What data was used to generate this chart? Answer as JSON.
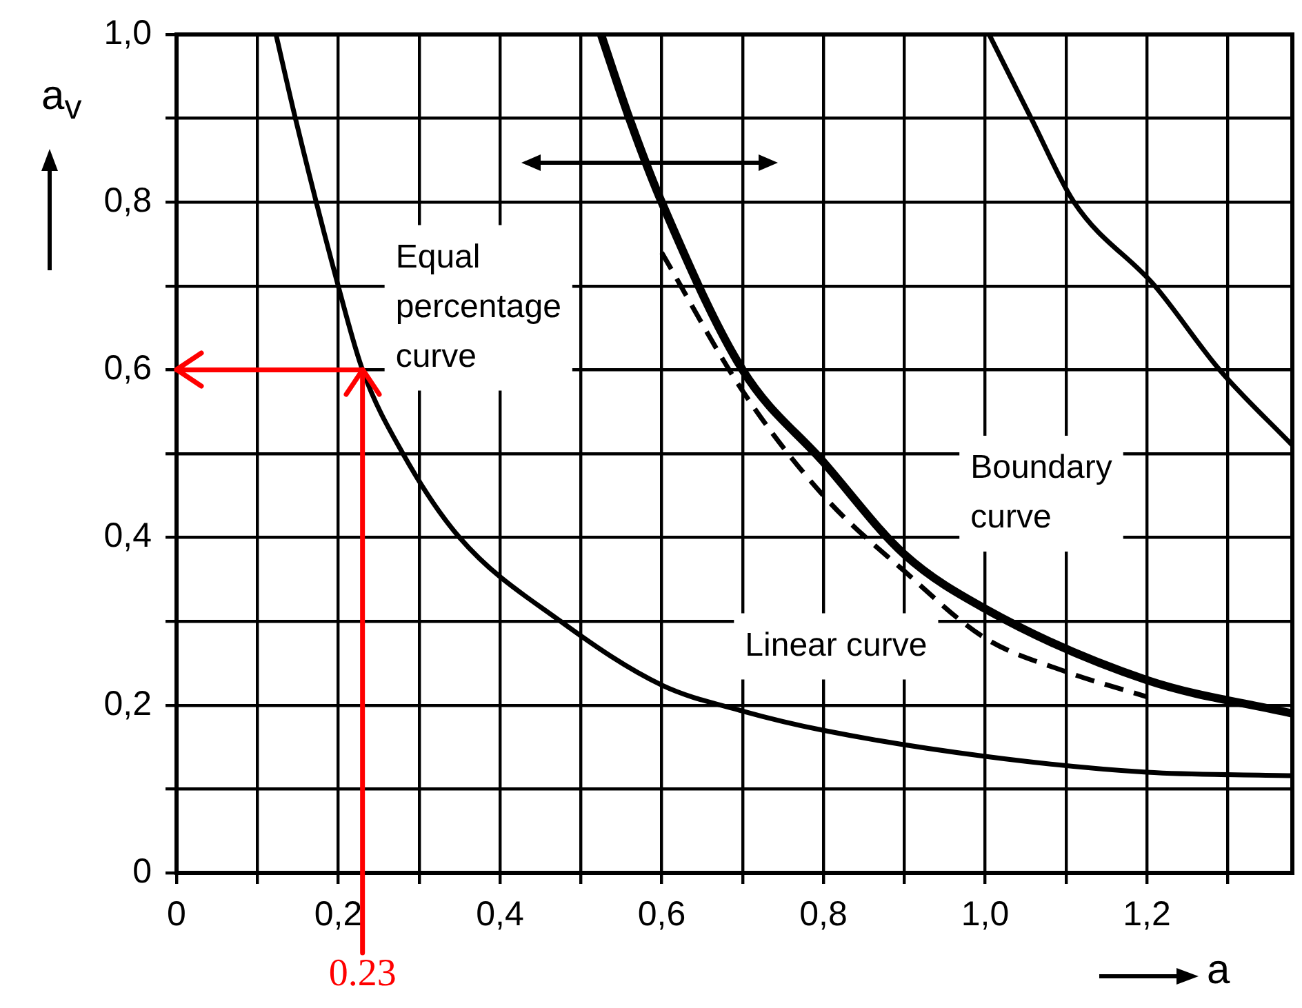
{
  "chart_data": {
    "type": "line",
    "xlabel": "a",
    "ylabel": "a$_{v}$",
    "xlim": [
      0,
      1.38
    ],
    "ylim": [
      0,
      1.0
    ],
    "xticks": [
      0,
      {
        "value": 0.1,
        "label": null
      },
      {
        "value": 0.2,
        "label": "0,2"
      },
      {
        "value": 0.3,
        "label": null
      },
      {
        "value": 0.4,
        "label": "0,4"
      },
      {
        "value": 0.5,
        "label": null
      },
      {
        "value": 0.6,
        "label": "0,6"
      },
      {
        "value": 0.7,
        "label": null
      },
      {
        "value": 0.8,
        "label": "0,8"
      },
      {
        "value": 0.9,
        "label": null
      },
      {
        "value": 1.0,
        "label": "1,0"
      },
      {
        "value": 1.1,
        "label": null
      },
      {
        "value": 1.2,
        "label": "1,2"
      },
      {
        "value": 1.3,
        "label": null
      }
    ],
    "yticks": [
      0,
      {
        "value": 0.1,
        "label": null
      },
      {
        "value": 0.2,
        "label": "0,2"
      },
      {
        "value": 0.3,
        "label": null
      },
      {
        "value": 0.4,
        "label": "0,4"
      },
      {
        "value": 0.5,
        "label": null
      },
      {
        "value": 0.6,
        "label": "0,6"
      },
      {
        "value": 0.7,
        "label": null
      },
      {
        "value": 0.8,
        "label": "0,8"
      },
      {
        "value": 0.9,
        "label": null
      },
      {
        "value": 1.0,
        "label": "1,0"
      }
    ],
    "grid": true,
    "legend": false,
    "marker": "none",
    "series": [
      {
        "name": "Equal percentage curve",
        "color": "#000000",
        "x": [
          0.123,
          0.147,
          0.2,
          0.23,
          0.28,
          0.35,
          0.475,
          0.6,
          0.7,
          0.8,
          1.0,
          1.2,
          1.38
        ],
        "values": [
          1.0,
          0.9,
          0.7,
          0.6,
          0.5,
          0.4,
          0.3,
          0.224,
          0.193,
          0.17,
          0.139,
          0.12,
          0.116
        ]
      },
      {
        "name": "Linear curve",
        "color": "#000000",
        "line_style": "dashed",
        "x": [
          0.6,
          0.7,
          0.8,
          0.9,
          1.0,
          1.1,
          1.2
        ],
        "values": [
          0.74,
          0.575,
          0.45,
          0.36,
          0.28,
          0.24,
          0.21
        ]
      },
      {
        "name": "Boundary curve",
        "color": "#000000",
        "x": [
          0.525,
          0.56,
          0.6,
          0.7,
          0.8,
          0.9,
          1.0,
          1.2,
          1.38
        ],
        "values": [
          1.0,
          0.9,
          0.8,
          0.6,
          0.49,
          0.38,
          0.315,
          0.23,
          0.19
        ]
      },
      {
        "color": "#000000",
        "x": [
          1.005,
          1.057,
          1.11,
          1.21,
          1.29,
          1.38
        ],
        "values": [
          1.0,
          0.9,
          0.8,
          0.7,
          0.6,
          0.51
        ]
      }
    ],
    "ref_lines": [
      {
        "axis": "x",
        "value": 0.23,
        "label": "0.23",
        "color": "#ff0000"
      },
      {
        "axis": "y",
        "value": 0.6,
        "color": "#ff0000"
      }
    ]
  }
}
